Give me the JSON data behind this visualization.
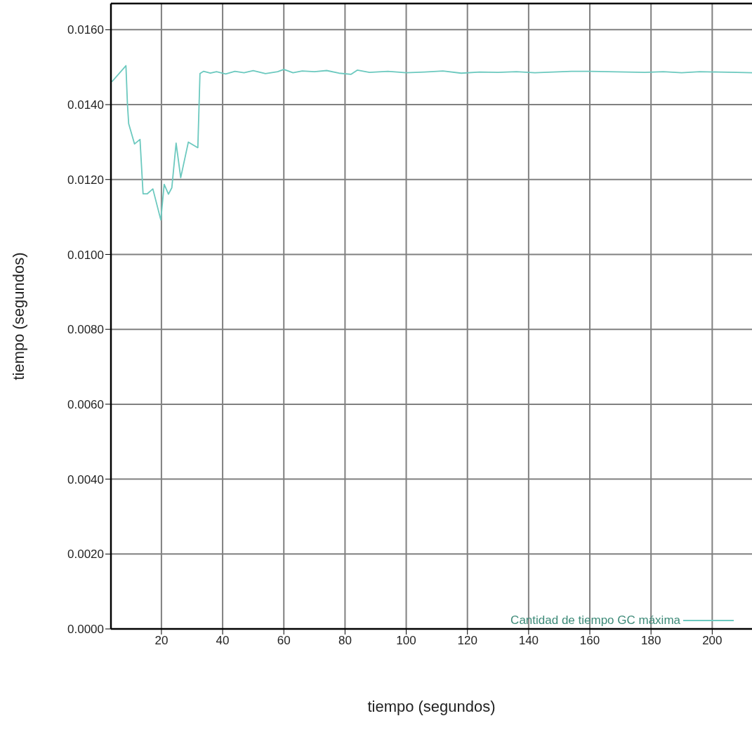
{
  "chart_data": {
    "type": "line",
    "xlabel": "tiempo (segundos)",
    "ylabel": "tiempo (segundos)",
    "xlim": [
      3.5,
      213
    ],
    "ylim": [
      0,
      0.0167
    ],
    "xticks": [
      20,
      40,
      60,
      80,
      100,
      120,
      140,
      160,
      180,
      200
    ],
    "yticks": [
      {
        "value": 0,
        "label": "0.0000"
      },
      {
        "value": 0.002,
        "label": "0.0020"
      },
      {
        "value": 0.004,
        "label": "0.0040"
      },
      {
        "value": 0.006,
        "label": "0.0060"
      },
      {
        "value": 0.008,
        "label": "0.0080"
      },
      {
        "value": 0.01,
        "label": "0.0100"
      },
      {
        "value": 0.012,
        "label": "0.0120"
      },
      {
        "value": 0.014,
        "label": "0.0140"
      },
      {
        "value": 0.016,
        "label": "0.0160"
      }
    ],
    "grid": true,
    "legend": "bottom right",
    "marker": "none",
    "line_style": "solid",
    "series": [
      {
        "name": "Cantidad de tiempo GC máxima",
        "color": "#6cc9bf",
        "x": [
          3.8,
          8.4,
          8.9,
          9.3,
          11.2,
          13.0,
          14.0,
          15.4,
          17.2,
          19.8,
          20.9,
          22.3,
          23.4,
          24.8,
          26.3,
          28.8,
          31.9,
          32.6,
          33.8,
          36,
          38,
          41,
          44,
          47,
          50,
          54,
          58,
          60,
          63,
          66,
          70,
          74,
          78,
          82,
          84,
          88,
          94,
          100,
          106,
          112,
          118,
          124,
          130,
          136,
          142,
          148,
          154,
          160,
          166,
          172,
          178,
          184,
          190,
          196,
          202,
          208,
          213
        ],
        "values": [
          0.01461,
          0.01504,
          0.014,
          0.01349,
          0.01295,
          0.01307,
          0.01162,
          0.01162,
          0.01175,
          0.01092,
          0.01187,
          0.01161,
          0.01178,
          0.01297,
          0.01205,
          0.013,
          0.01285,
          0.01483,
          0.01489,
          0.01484,
          0.01488,
          0.01482,
          0.01489,
          0.01485,
          0.01491,
          0.01483,
          0.01488,
          0.01494,
          0.01485,
          0.0149,
          0.01488,
          0.01491,
          0.01484,
          0.01481,
          0.01492,
          0.01486,
          0.01489,
          0.01485,
          0.01487,
          0.0149,
          0.01484,
          0.01487,
          0.01486,
          0.01488,
          0.01485,
          0.01487,
          0.01489,
          0.01489,
          0.01488,
          0.01487,
          0.01486,
          0.01488,
          0.01485,
          0.01488,
          0.01487,
          0.01486,
          0.01485
        ]
      }
    ]
  }
}
